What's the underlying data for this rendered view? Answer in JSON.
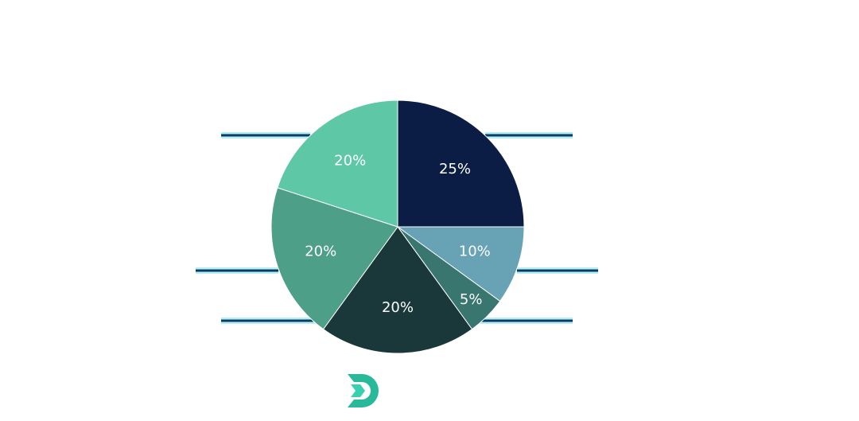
{
  "chart_data": {
    "type": "pie",
    "values": [
      25,
      10,
      5,
      20,
      20,
      20
    ],
    "value_labels": [
      "25%",
      "10%",
      "5%",
      "20%",
      "20%",
      "20%"
    ],
    "colors": [
      "#0c1d45",
      "#67a3b5",
      "#3a7670",
      "#1a3839",
      "#4d9f87",
      "#5ec8a6"
    ]
  }
}
